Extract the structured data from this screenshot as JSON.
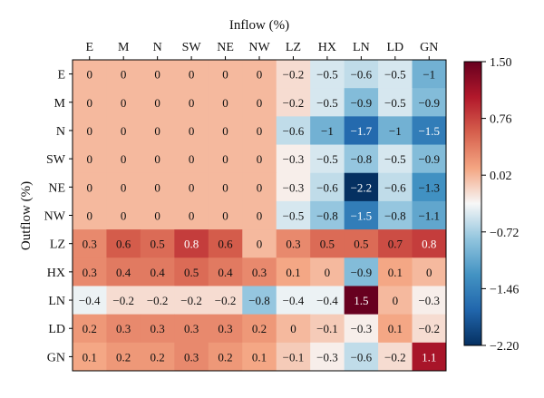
{
  "chart_data": {
    "type": "heatmap",
    "xlabel": "Inflow (%)",
    "ylabel": "Outflow (%)",
    "x_categories": [
      "E",
      "M",
      "N",
      "SW",
      "NE",
      "NW",
      "LZ",
      "HX",
      "LN",
      "LD",
      "GN"
    ],
    "y_categories": [
      "E",
      "M",
      "N",
      "SW",
      "NE",
      "NW",
      "LZ",
      "HX",
      "LN",
      "LD",
      "GN"
    ],
    "values": [
      [
        0,
        0,
        0,
        0,
        0,
        0,
        -0.2,
        -0.5,
        -0.6,
        -0.5,
        -1
      ],
      [
        0,
        0,
        0,
        0,
        0,
        0,
        -0.2,
        -0.5,
        -0.9,
        -0.5,
        -0.9
      ],
      [
        0,
        0,
        0,
        0,
        0,
        0,
        -0.6,
        -1,
        -1.7,
        -1,
        -1.5
      ],
      [
        0,
        0,
        0,
        0,
        0,
        0,
        -0.3,
        -0.5,
        -0.8,
        -0.5,
        -0.9
      ],
      [
        0,
        0,
        0,
        0,
        0,
        0,
        -0.3,
        -0.6,
        -2.2,
        -0.6,
        -1.3
      ],
      [
        0,
        0,
        0,
        0,
        0,
        0,
        -0.5,
        -0.8,
        -1.5,
        -0.8,
        -1.1
      ],
      [
        0.3,
        0.6,
        0.5,
        0.8,
        0.6,
        0,
        0.3,
        0.5,
        0.5,
        0.7,
        0.8
      ],
      [
        0.3,
        0.4,
        0.4,
        0.5,
        0.4,
        0.3,
        0.1,
        0,
        -0.9,
        0.1,
        0
      ],
      [
        -0.4,
        -0.2,
        -0.2,
        -0.2,
        -0.2,
        -0.8,
        -0.4,
        -0.4,
        1.5,
        0,
        -0.3
      ],
      [
        0.2,
        0.3,
        0.3,
        0.3,
        0.3,
        0.2,
        0,
        -0.1,
        -0.3,
        0.1,
        -0.2
      ],
      [
        0.1,
        0.2,
        0.2,
        0.3,
        0.2,
        0.1,
        -0.1,
        -0.3,
        -0.6,
        -0.2,
        1.1
      ]
    ],
    "color_range": [
      -2.2,
      1.5
    ],
    "colorbar_ticks": [
      "1.50",
      "0.76",
      "0.02",
      "−0.72",
      "−1.46",
      "−2.20"
    ],
    "colormap": "RdBu_r",
    "colors": {
      "min": "#053061",
      "max": "#67001f",
      "neutral": "#f7f7f7"
    },
    "grid": false,
    "colorbar_position": "right"
  }
}
